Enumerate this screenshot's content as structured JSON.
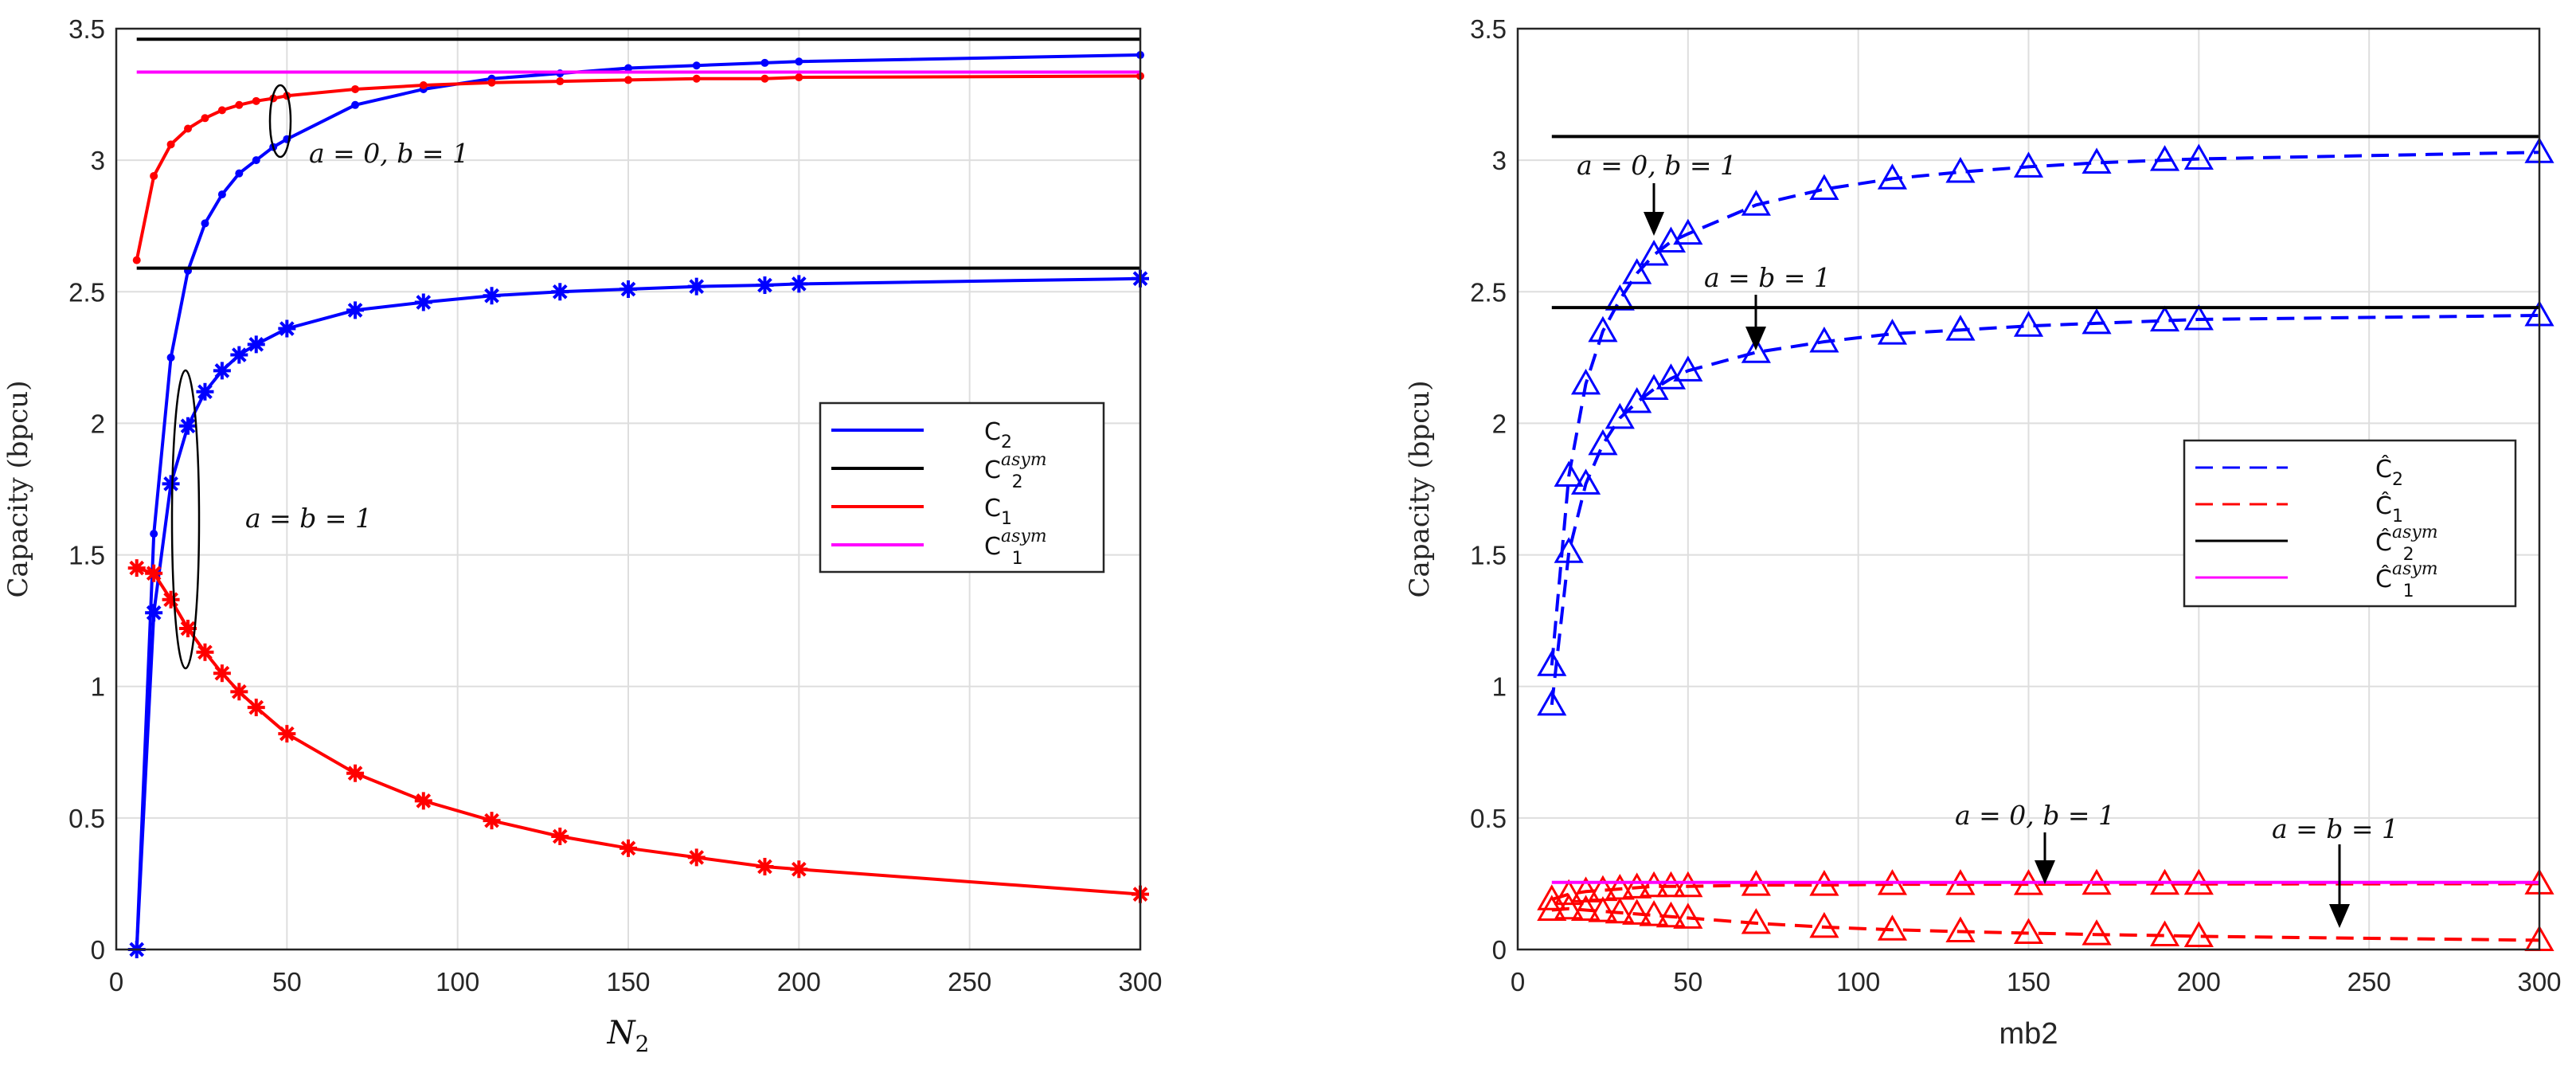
{
  "chart_data": [
    {
      "type": "line",
      "panel": "left",
      "title": "",
      "xlabel": "N",
      "xlabel_sub": "2",
      "ylabel": "Capacity (bpcu)",
      "xlim": [
        0,
        300
      ],
      "ylim": [
        0,
        3.5
      ],
      "grid": true,
      "xticks": [
        "0",
        "50",
        "100",
        "150",
        "200",
        "250",
        "300"
      ],
      "yticks": [
        "0",
        "0.5",
        "1",
        "1.5",
        "2",
        "2.5",
        "3",
        "3.5"
      ],
      "series": [
        {
          "name": "C2 (a=0,b=1)",
          "color": "#0000ff",
          "marker": "dot",
          "x": [
            6,
            11,
            16,
            21,
            26,
            31,
            36,
            41,
            46,
            50,
            70,
            90,
            110,
            130,
            150,
            170,
            190,
            200,
            300
          ],
          "y": [
            0,
            1.58,
            2.25,
            2.58,
            2.76,
            2.87,
            2.95,
            3.0,
            3.05,
            3.08,
            3.21,
            3.27,
            3.31,
            3.33,
            3.35,
            3.36,
            3.37,
            3.375,
            3.4
          ]
        },
        {
          "name": "C1 (a=0,b=1)",
          "color": "#ff0000",
          "marker": "dot",
          "x": [
            6,
            11,
            16,
            21,
            26,
            31,
            36,
            41,
            46,
            50,
            70,
            90,
            110,
            130,
            150,
            170,
            190,
            200,
            300
          ],
          "y": [
            2.62,
            2.94,
            3.06,
            3.12,
            3.16,
            3.19,
            3.21,
            3.225,
            3.235,
            3.245,
            3.27,
            3.285,
            3.295,
            3.3,
            3.305,
            3.31,
            3.31,
            3.315,
            3.32
          ]
        },
        {
          "name": "C2 (a=b=1)",
          "color": "#0000ff",
          "marker": "star",
          "x": [
            6,
            11,
            16,
            21,
            26,
            31,
            36,
            41,
            50,
            70,
            90,
            110,
            130,
            150,
            170,
            190,
            200,
            300
          ],
          "y": [
            0,
            1.28,
            1.77,
            1.99,
            2.12,
            2.2,
            2.26,
            2.3,
            2.36,
            2.43,
            2.46,
            2.485,
            2.5,
            2.51,
            2.52,
            2.525,
            2.53,
            2.55
          ]
        },
        {
          "name": "C1 (a=b=1)",
          "color": "#ff0000",
          "marker": "star",
          "x": [
            6,
            11,
            16,
            21,
            26,
            31,
            36,
            41,
            50,
            70,
            90,
            110,
            130,
            150,
            170,
            190,
            200,
            300
          ],
          "y": [
            1.45,
            1.43,
            1.33,
            1.22,
            1.13,
            1.05,
            0.98,
            0.92,
            0.82,
            0.67,
            0.565,
            0.49,
            0.43,
            0.385,
            0.35,
            0.315,
            0.305,
            0.21
          ]
        },
        {
          "name": "C2asym (a=0,b=1)",
          "color": "#000000",
          "marker": "none",
          "x": [
            6,
            300
          ],
          "y": [
            3.46,
            3.46
          ]
        },
        {
          "name": "C2asym (a=b=1)",
          "color": "#000000",
          "marker": "none",
          "x": [
            6,
            300
          ],
          "y": [
            2.59,
            2.59
          ]
        },
        {
          "name": "C1asym",
          "color": "#ff00ff",
          "marker": "none",
          "x": [
            6,
            300
          ],
          "y": [
            3.335,
            3.335
          ]
        }
      ],
      "legend": {
        "placement": "center-right",
        "entries": [
          {
            "label": "C",
            "sub": "2",
            "sup": "",
            "color": "#0000ff"
          },
          {
            "label": "C",
            "sub": "2",
            "sup": "asym",
            "color": "#000000"
          },
          {
            "label": "C",
            "sub": "1",
            "sup": "",
            "color": "#ff0000"
          },
          {
            "label": "C",
            "sub": "1",
            "sup": "asym",
            "color": "#ff00ff"
          }
        ]
      },
      "annotations": [
        {
          "text": "a = 0, b = 1"
        },
        {
          "text": "a = b = 1"
        }
      ]
    },
    {
      "type": "line",
      "panel": "right",
      "title": "",
      "xlabel": "mb2",
      "ylabel": "Capacity (bpcu)",
      "xlim": [
        0,
        300
      ],
      "ylim": [
        0,
        3.5
      ],
      "grid": true,
      "xticks": [
        "0",
        "50",
        "100",
        "150",
        "200",
        "250",
        "300"
      ],
      "yticks": [
        "0",
        "0.5",
        "1",
        "1.5",
        "2",
        "2.5",
        "3",
        "3.5"
      ],
      "series": [
        {
          "name": "C2hat (a=0,b=1)",
          "color": "#0000ff",
          "marker": "triangle",
          "dash": true,
          "x": [
            10,
            15,
            20,
            25,
            30,
            35,
            40,
            45,
            50,
            70,
            90,
            110,
            130,
            150,
            170,
            190,
            200,
            300
          ],
          "y": [
            1.08,
            1.8,
            2.15,
            2.35,
            2.47,
            2.57,
            2.64,
            2.69,
            2.72,
            2.83,
            2.89,
            2.93,
            2.955,
            2.975,
            2.99,
            3.0,
            3.005,
            3.03
          ]
        },
        {
          "name": "C2hat (a=b=1)",
          "color": "#0000ff",
          "marker": "triangle",
          "dash": true,
          "x": [
            10,
            15,
            20,
            25,
            30,
            35,
            40,
            45,
            50,
            70,
            90,
            110,
            130,
            150,
            170,
            190,
            200,
            300
          ],
          "y": [
            0.93,
            1.51,
            1.77,
            1.92,
            2.02,
            2.08,
            2.13,
            2.17,
            2.2,
            2.27,
            2.31,
            2.34,
            2.355,
            2.37,
            2.38,
            2.39,
            2.395,
            2.41
          ]
        },
        {
          "name": "C1hat (a=0,b=1)",
          "color": "#ff0000",
          "marker": "triangle",
          "dash": true,
          "x": [
            10,
            15,
            20,
            25,
            30,
            35,
            40,
            45,
            50,
            70,
            90,
            110,
            130,
            150,
            170,
            190,
            200,
            300
          ],
          "y": [
            0.19,
            0.21,
            0.22,
            0.225,
            0.23,
            0.235,
            0.24,
            0.24,
            0.24,
            0.245,
            0.245,
            0.248,
            0.248,
            0.248,
            0.249,
            0.249,
            0.249,
            0.25
          ]
        },
        {
          "name": "C1hat (a=b=1)",
          "color": "#ff0000",
          "marker": "triangle",
          "dash": true,
          "x": [
            10,
            15,
            20,
            25,
            30,
            35,
            40,
            45,
            50,
            70,
            90,
            110,
            130,
            150,
            170,
            190,
            200,
            300
          ],
          "y": [
            0.15,
            0.155,
            0.15,
            0.145,
            0.14,
            0.135,
            0.13,
            0.125,
            0.12,
            0.1,
            0.085,
            0.075,
            0.068,
            0.062,
            0.057,
            0.053,
            0.05,
            0.035
          ]
        },
        {
          "name": "C2hat asym (a=0,b=1)",
          "color": "#000000",
          "marker": "none",
          "x": [
            10,
            300
          ],
          "y": [
            3.09,
            3.09
          ]
        },
        {
          "name": "C2hat asym (a=b=1)",
          "color": "#000000",
          "marker": "none",
          "x": [
            10,
            300
          ],
          "y": [
            2.44,
            2.44
          ]
        },
        {
          "name": "C1hat asym",
          "color": "#ff00ff",
          "marker": "none",
          "x": [
            10,
            300
          ],
          "y": [
            0.255,
            0.255
          ]
        }
      ],
      "legend": {
        "placement": "center-right",
        "entries": [
          {
            "label": "Ĉ",
            "sub": "2",
            "sup": "",
            "color": "#0000ff",
            "dash": true
          },
          {
            "label": "Ĉ",
            "sub": "1",
            "sup": "",
            "color": "#ff0000",
            "dash": true
          },
          {
            "label": "Ĉ",
            "sub": "2",
            "sup": "asym",
            "color": "#000000",
            "dash": false
          },
          {
            "label": "Ĉ",
            "sub": "1",
            "sup": "asym",
            "color": "#ff00ff",
            "dash": false
          }
        ]
      },
      "annotations": [
        {
          "text": "a = 0, b = 1"
        },
        {
          "text": "a = b = 1"
        },
        {
          "text": "a = 0, b = 1"
        },
        {
          "text": "a = b = 1"
        }
      ]
    }
  ]
}
